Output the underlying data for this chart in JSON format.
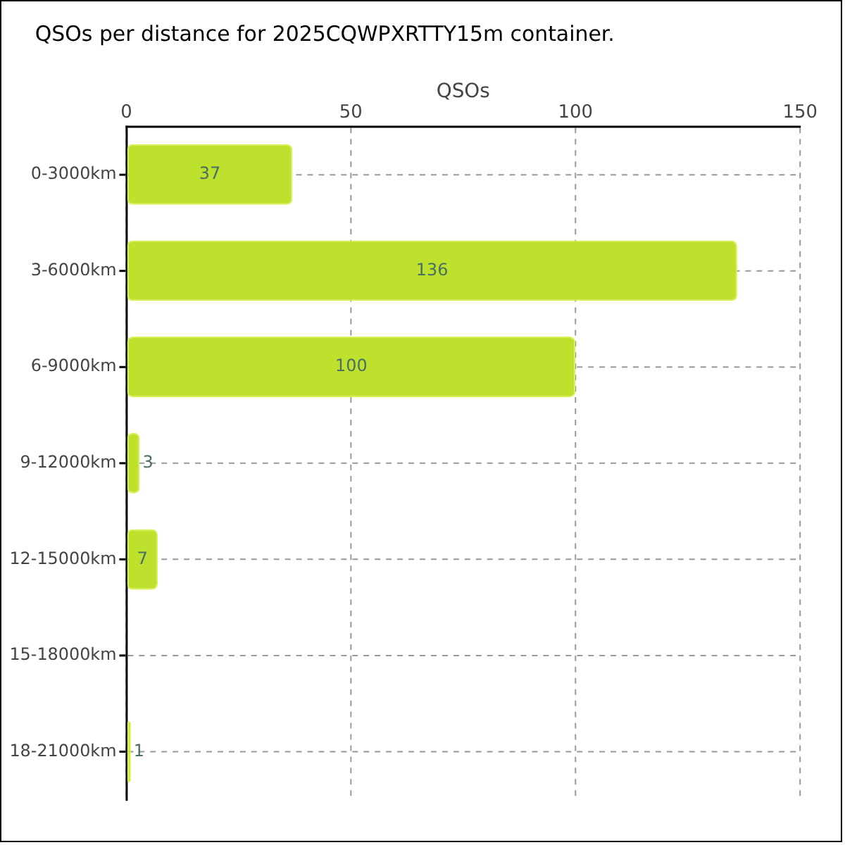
{
  "chart_data": {
    "type": "bar",
    "orientation": "horizontal",
    "title": "QSOs per distance for 2025CQWPXRTTY15m container.",
    "xlabel": "QSOs",
    "categories": [
      "0-3000km",
      "3-6000km",
      "6-9000km",
      "9-12000km",
      "12-15000km",
      "15-18000km",
      "18-21000km"
    ],
    "values": [
      37,
      136,
      100,
      3,
      7,
      0,
      1
    ],
    "color": "#bde12d",
    "value_labels": [
      "37",
      "136",
      "100",
      "3",
      "7",
      null,
      "1"
    ],
    "xlim": [
      0,
      150
    ],
    "xticks": [
      0,
      50,
      100,
      150
    ],
    "grid": true
  }
}
